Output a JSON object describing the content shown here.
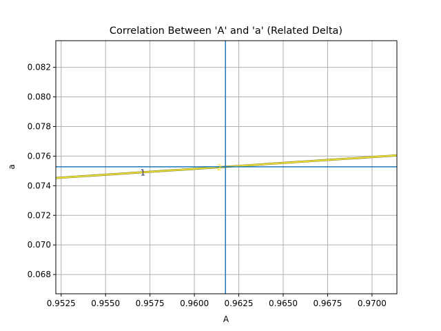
{
  "chart_data": {
    "type": "line",
    "title": "Correlation Between 'A' and 'a' (Related Delta)",
    "xlabel": "A",
    "ylabel": "a",
    "xlim": [
      0.9522,
      0.9714
    ],
    "ylim": [
      0.0667,
      0.0838
    ],
    "x_ticks": [
      0.9525,
      0.955,
      0.9575,
      0.96,
      0.9625,
      0.965,
      0.9675,
      0.97
    ],
    "x_tick_labels": [
      "0.9525",
      "0.9550",
      "0.9575",
      "0.9600",
      "0.9625",
      "0.9650",
      "0.9675",
      "0.9700"
    ],
    "y_ticks": [
      0.068,
      0.07,
      0.072,
      0.074,
      0.076,
      0.078,
      0.08,
      0.082
    ],
    "y_tick_labels": [
      "0.068",
      "0.070",
      "0.072",
      "0.074",
      "0.076",
      "0.078",
      "0.080",
      "0.082"
    ],
    "grid": true,
    "reference_lines": {
      "vertical_x": 0.96175,
      "horizontal_y": 0.07528,
      "color": "#1f77b4"
    },
    "series": [
      {
        "color_outer": "#8c8c1e",
        "color_inner": "#f5e63c",
        "x": [
          0.9522,
          0.9714
        ],
        "y": [
          0.07452,
          0.07605
        ]
      }
    ],
    "contour_labels": [
      {
        "text": "1",
        "x": 0.9571,
        "y": 0.07488,
        "color": "#3a2a5a"
      },
      {
        "text": "2",
        "x": 0.9614,
        "y": 0.07523,
        "color": "#f5e63c"
      }
    ]
  }
}
